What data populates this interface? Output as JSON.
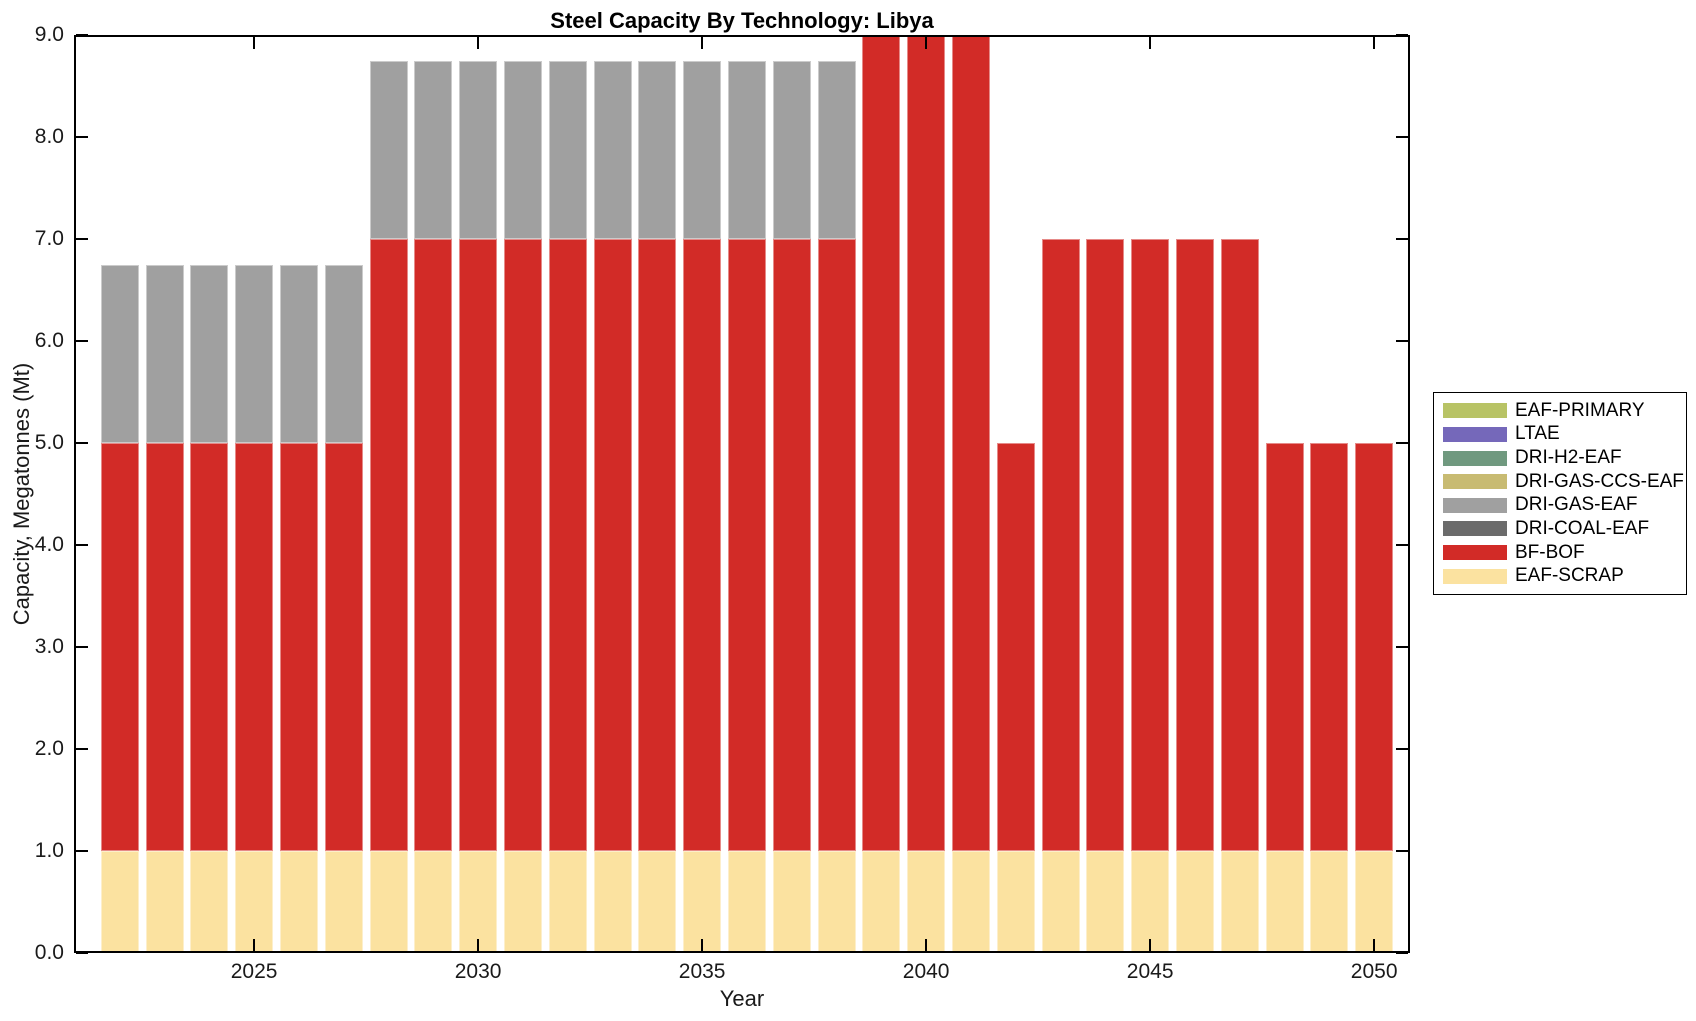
{
  "title": "Steel Capacity By Technology: Libya",
  "x_axis": {
    "label": "Year",
    "ticks": [
      "2025",
      "2030",
      "2035",
      "2040",
      "2045",
      "2050"
    ]
  },
  "y_axis": {
    "label": "Capacity, Megatonnes (Mt)",
    "ticks": [
      "0.0",
      "1.0",
      "2.0",
      "3.0",
      "4.0",
      "5.0",
      "6.0",
      "7.0",
      "8.0",
      "9.0"
    ]
  },
  "legend": {
    "items": [
      {
        "label": "EAF-PRIMARY",
        "color": "#B8C365"
      },
      {
        "label": "LTAE",
        "color": "#7568BA"
      },
      {
        "label": "DRI-H2-EAF",
        "color": "#70997F"
      },
      {
        "label": "DRI-GAS-CCS-EAF",
        "color": "#C8BB72"
      },
      {
        "label": "DRI-GAS-EAF",
        "color": "#A0A0A0"
      },
      {
        "label": "DRI-COAL-EAF",
        "color": "#6B6B6B"
      },
      {
        "label": "BF-BOF",
        "color": "#D22B27"
      },
      {
        "label": "EAF-SCRAP",
        "color": "#FBE2A0"
      }
    ]
  },
  "chart_data": {
    "type": "bar",
    "stacked": true,
    "title": "Steel Capacity By Technology: Libya",
    "xlabel": "Year",
    "ylabel": "Capacity, Megatonnes (Mt)",
    "grid": false,
    "legend_position": "outside-right",
    "x": [
      2022,
      2023,
      2024,
      2025,
      2026,
      2027,
      2028,
      2029,
      2030,
      2031,
      2032,
      2033,
      2034,
      2035,
      2036,
      2037,
      2038,
      2039,
      2040,
      2041,
      2042,
      2043,
      2044,
      2045,
      2046,
      2047,
      2048,
      2049,
      2050
    ],
    "xlim": [
      2020.98,
      2050.8
    ],
    "ylim": [
      0,
      9
    ],
    "series": [
      {
        "name": "EAF-SCRAP",
        "color": "#FBE2A0",
        "values": [
          1,
          1,
          1,
          1,
          1,
          1,
          1,
          1,
          1,
          1,
          1,
          1,
          1,
          1,
          1,
          1,
          1,
          1,
          1,
          1,
          1,
          1,
          1,
          1,
          1,
          1,
          1,
          1,
          1
        ]
      },
      {
        "name": "BF-BOF",
        "color": "#D22B27",
        "values": [
          4,
          4,
          4,
          4,
          4,
          4,
          6,
          6,
          6,
          6,
          6,
          6,
          6,
          6,
          6,
          6,
          6,
          8,
          8,
          8,
          4,
          6,
          6,
          6,
          6,
          6,
          4,
          4,
          4
        ]
      },
      {
        "name": "DRI-COAL-EAF",
        "color": "#6B6B6B",
        "values": [
          0,
          0,
          0,
          0,
          0,
          0,
          0,
          0,
          0,
          0,
          0,
          0,
          0,
          0,
          0,
          0,
          0,
          0,
          0,
          0,
          0,
          0,
          0,
          0,
          0,
          0,
          0,
          0,
          0
        ]
      },
      {
        "name": "DRI-GAS-EAF",
        "color": "#A0A0A0",
        "values": [
          1.75,
          1.75,
          1.75,
          1.75,
          1.75,
          1.75,
          1.75,
          1.75,
          1.75,
          1.75,
          1.75,
          1.75,
          1.75,
          1.75,
          1.75,
          1.75,
          1.75,
          0,
          0,
          0,
          0,
          0,
          0,
          0,
          0,
          0,
          0,
          0,
          0
        ]
      },
      {
        "name": "DRI-GAS-CCS-EAF",
        "color": "#C8BB72",
        "values": [
          0,
          0,
          0,
          0,
          0,
          0,
          0,
          0,
          0,
          0,
          0,
          0,
          0,
          0,
          0,
          0,
          0,
          0,
          0,
          0,
          0,
          0,
          0,
          0,
          0,
          0,
          0,
          0,
          0
        ]
      },
      {
        "name": "DRI-H2-EAF",
        "color": "#70997F",
        "values": [
          0,
          0,
          0,
          0,
          0,
          0,
          0,
          0,
          0,
          0,
          0,
          0,
          0,
          0,
          0,
          0,
          0,
          0,
          0,
          0,
          0,
          0,
          0,
          0,
          0,
          0,
          0,
          0,
          0
        ]
      },
      {
        "name": "LTAE",
        "color": "#7568BA",
        "values": [
          0,
          0,
          0,
          0,
          0,
          0,
          0,
          0,
          0,
          0,
          0,
          0,
          0,
          0,
          0,
          0,
          0,
          0,
          0,
          0,
          0,
          0,
          0,
          0,
          0,
          0,
          0,
          0,
          0
        ]
      },
      {
        "name": "EAF-PRIMARY",
        "color": "#B8C365",
        "values": [
          0,
          0,
          0,
          0,
          0,
          0,
          0,
          0,
          0,
          0,
          0,
          0,
          0,
          0,
          0,
          0,
          0,
          0,
          0,
          0,
          0,
          0,
          0,
          0,
          0,
          0,
          0,
          0,
          0
        ]
      }
    ]
  }
}
